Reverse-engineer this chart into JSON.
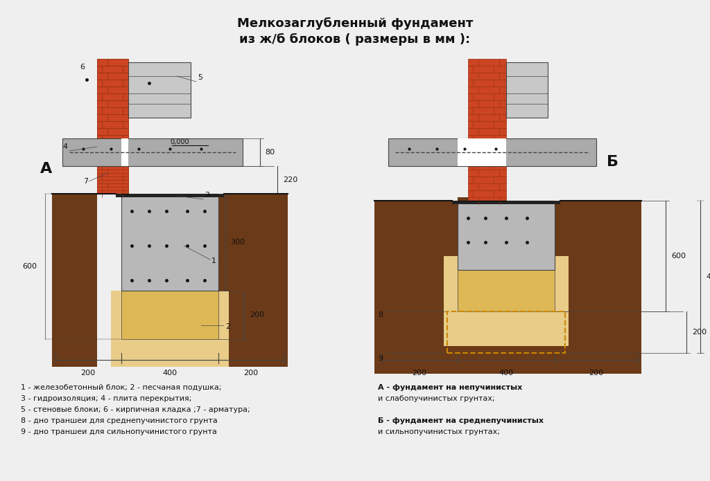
{
  "title_line1": "Мелкозаглубленный фундамент",
  "title_line2": "из ж/б блоков ( размеры в мм ):",
  "bg_color": "#efefef",
  "legend_left": [
    "1 - железобетонный блок; 2 - песчаная подушка;",
    "3 - гидроизоляция; 4 - плита перекрытия;",
    "5 - стеновые блоки; 6 - кирпичная кладка ;7 - арматура;",
    "8 - дно траншеи для среднепучинистого грунта",
    "9 - дно траншеи для сильнопучинистого грунта"
  ],
  "legend_right_A": [
    "А - фундамент на непучинистых",
    "и слабопучинистых грунтах;"
  ],
  "legend_right_B": [
    "Б - фундамент на среднепучинистых",
    "и сильнопучинистых грунтах;"
  ],
  "colors": {
    "brick": "#cc4422",
    "brick_mortar": "#993311",
    "concrete": "#aaaaaa",
    "concrete_block": "#b8b8b8",
    "sand": "#ddb855",
    "sand_light": "#e8cc88",
    "soil_dark": "#6b3a18",
    "soil_med": "#7d4520",
    "black": "#111111",
    "dim_line": "#444444",
    "dashed_orange": "#cc8800",
    "grey_wall": "#c8c8c8",
    "white": "#ffffff",
    "hydroiz": "#222222"
  }
}
